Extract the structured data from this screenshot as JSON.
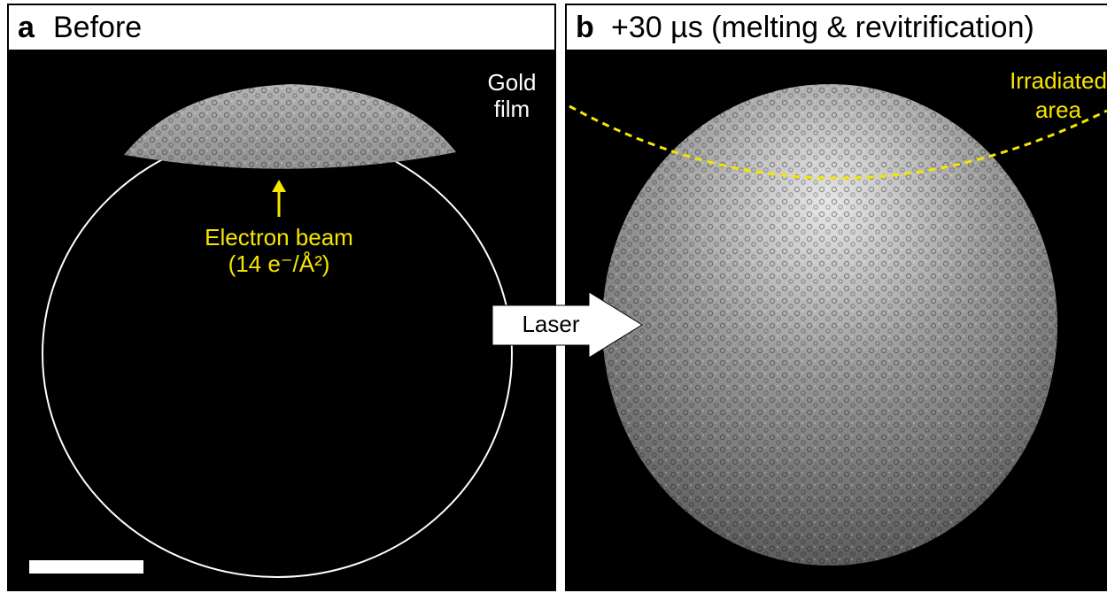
{
  "panel_a": {
    "label": "a",
    "title": "Before",
    "gold_label": [
      "Gold",
      "film"
    ],
    "beam_label": [
      "Electron beam",
      "(14 e⁻/Å²)"
    ]
  },
  "panel_b": {
    "label": "b",
    "title": "+30 µs (melting & revitrification)",
    "irradiated_label": [
      "Irradiated",
      "area"
    ]
  },
  "arrow": {
    "label": "Laser"
  }
}
